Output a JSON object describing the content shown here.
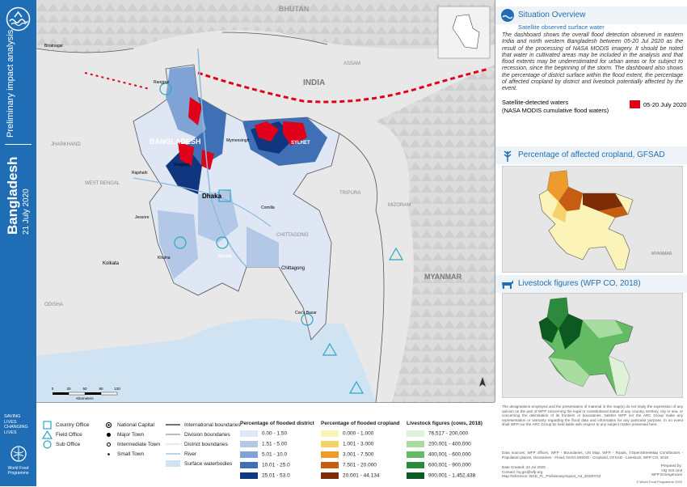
{
  "sidebar": {
    "title": "Bangladesh",
    "date": "21 July 2020",
    "subtitle": "Preliminary impact analysis",
    "slogan": [
      "SAVING",
      "LIVES",
      "CHANGING",
      "LIVES"
    ],
    "org": "World Food Programme"
  },
  "map": {
    "labels": [
      "BHUTAN",
      "INDIA",
      "BANGLADESH",
      "MYANMAR",
      "Dhaka",
      "Chittagong",
      "Kolkata",
      "SYLHET",
      "Mymensingh",
      "Rangpur",
      "Rajshahi",
      "Khulna",
      "Barisal",
      "Cox's Bazar",
      "WEST BENGAL",
      "JHARKHAND",
      "TRIPURA",
      "MIZORAM",
      "ASSAM",
      "ODISHA",
      "Biratnagar",
      "CHITTAGONG",
      "Sirajganj",
      "Comilla",
      "Jessore"
    ],
    "scale_ticks": [
      0,
      30,
      60,
      90,
      120
    ],
    "scale_unit": "Kilometers"
  },
  "legend": {
    "offices": [
      "Country Office",
      "Field Office",
      "Sub Office"
    ],
    "towns": [
      "National Capital",
      "Major Town",
      "Intermediate Town",
      "Small Town"
    ],
    "lines": [
      "International boundaries",
      "Division boundaries",
      "District boundaries",
      "River",
      "Surface waterbodies"
    ],
    "flooded_district": {
      "title": "Percentage of flooded district",
      "classes": [
        {
          "label": "0.00 - 1.50",
          "color": "#dfe7f4"
        },
        {
          "label": "1.51 - 5.00",
          "color": "#b3c8e6"
        },
        {
          "label": "5.01 - 10.0",
          "color": "#7ea3d4"
        },
        {
          "label": "10.01 - 25.0",
          "color": "#3f6fb5"
        },
        {
          "label": "25.01 - 53.0",
          "color": "#10367f"
        }
      ]
    },
    "flooded_cropland": {
      "title": "Percentage of flooded cropland",
      "classes": [
        {
          "label": "0.000 - 1.000",
          "color": "#fbf3b7"
        },
        {
          "label": "1.001 - 3.000",
          "color": "#f7d26b"
        },
        {
          "label": "3.001 - 7.500",
          "color": "#ee9b2d"
        },
        {
          "label": "7.501 - 20.000",
          "color": "#c75d12"
        },
        {
          "label": "20.001 - 44.134",
          "color": "#7d2e07"
        }
      ]
    },
    "livestock": {
      "title": "Livestock figures (cows, 2018)",
      "classes": [
        {
          "label": "76,517 - 200,000",
          "color": "#dff1d8"
        },
        {
          "label": "200,001 - 400,000",
          "color": "#a8dca0"
        },
        {
          "label": "400,001 - 600,000",
          "color": "#64bb64"
        },
        {
          "label": "600,001 - 900,000",
          "color": "#2b8a3b"
        },
        {
          "label": "900,001 - 1,452,438",
          "color": "#0c5a22"
        }
      ]
    }
  },
  "overview": {
    "title": "Situation Overview",
    "subtitle": "Satellite observed surface water",
    "text": "The dashboard shows the overall flood detection observed in eastern India and north western Bangladesh between 05-20 Jul 2020 as the result of the processing of NASA MODIS imagery. It should be noted that water in cultivated areas may be included in the analysis and that flood extents may be underestimated for urban areas or for subject to recession, since the beginning of the storm. The dashboard also shows the percentage of district surface within the flood extent, the percentage of affected cropland by district and livestock potentially affected by the event.",
    "waters_label": [
      "Satellite-detected waters",
      "(NASA MODIS cumulative flood waters)"
    ],
    "waters_period": "05-20 July 2020",
    "waters_color": "#e0001a"
  },
  "cropland_panel": {
    "title": "Percentage of affected cropland, GFSAD"
  },
  "livestock_panel": {
    "title": "Livestock figures (WFP CO, 2018)"
  },
  "footer": {
    "disclaimer": "The designations employed and the presentation of material in the map(s) do not imply the expression of any opinion on the part of WFP concerning the legal or constitutional status of any country, territory, city or sea, or concerning the delimitation of its frontiers or boundaries. Neither WFP nor the ARC Group make any representation or warranty regarding the flood data and information for any particular purpose. In no event shall WFP nor the ARC Group be held liable with respect to any subject matter presented here.",
    "sources": "Data sources: WFP offices, WFP - Boundaries, UN Map, WFP - Roads, ©OpenStreetMap Contributors - Population places, Geonames - Flood, NASA MODIS - Cropland, GFSAD - Livestock, WFP CO, 2018",
    "created": "Date Created: 22 Jul 2020",
    "contact": "Contact: hq.gis@wfp.org",
    "reference": "Map Reference: BGD_FL_PreliminaryImpact_A3_20200722",
    "prepared": [
      "Prepared by:",
      "HQ GIS Unit",
      "WFP Emergencies"
    ],
    "copyright": "© World Food Programme 2020"
  }
}
